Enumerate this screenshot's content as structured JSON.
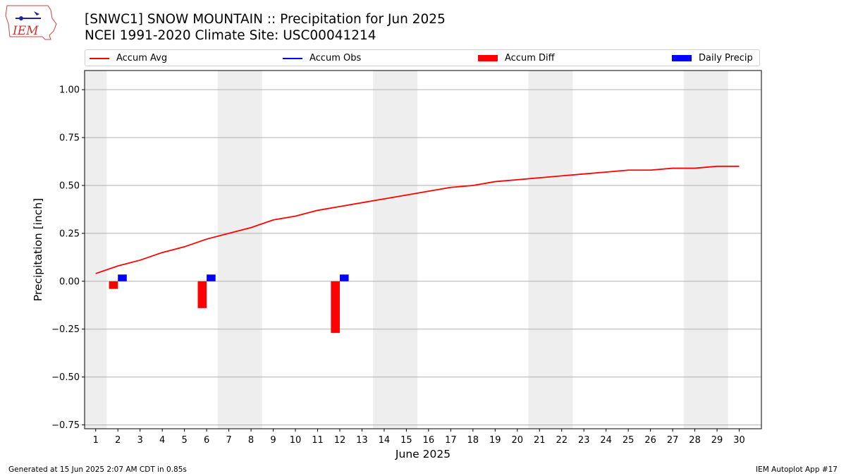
{
  "header": {
    "title_line1": "[SNWC1] SNOW MOUNTAIN :: Precipitation for Jun 2025",
    "title_line2": "NCEI 1991-2020 Climate Site: USC00041214"
  },
  "logo": {
    "text": "IEM"
  },
  "legend": {
    "items": [
      {
        "label": "Accum Avg",
        "color": "#ff0000",
        "kind": "line"
      },
      {
        "label": "Accum Obs",
        "color": "#0000ff",
        "kind": "line"
      },
      {
        "label": "Accum Diff",
        "color": "#ff0000",
        "kind": "box"
      },
      {
        "label": "Daily Precip",
        "color": "#0000ff",
        "kind": "box"
      }
    ]
  },
  "footer": {
    "left": "Generated at 15 Jun 2025 2:07 AM CDT in 0.85s",
    "right": "IEM Autoplot App #17"
  },
  "chart_data": {
    "type": "bar",
    "title": "[SNWC1] SNOW MOUNTAIN :: Precipitation for Jun 2025",
    "subtitle": "NCEI 1991-2020 Climate Site: USC00041214",
    "xlabel": "June 2025",
    "ylabel": "Precipitation [inch]",
    "xlim": [
      0.5,
      31
    ],
    "ylim": [
      -0.77,
      1.1
    ],
    "yticks": [
      -0.75,
      -0.5,
      -0.25,
      0.0,
      0.25,
      0.5,
      0.75,
      1.0
    ],
    "ytick_labels": [
      "−0.75",
      "−0.50",
      "−0.25",
      "0.00",
      "0.25",
      "0.50",
      "0.75",
      "1.00"
    ],
    "days": [
      1,
      2,
      3,
      4,
      5,
      6,
      7,
      8,
      9,
      10,
      11,
      12,
      13,
      14,
      15,
      16,
      17,
      18,
      19,
      20,
      21,
      22,
      23,
      24,
      25,
      26,
      27,
      28,
      29,
      30
    ],
    "weekend_days": [
      1,
      7,
      8,
      14,
      15,
      21,
      22,
      28,
      29
    ],
    "grid": true,
    "legend_position": "top",
    "series": [
      {
        "name": "Accum Avg",
        "kind": "line",
        "color": "#ff0000",
        "x": [
          1,
          2,
          3,
          4,
          5,
          6,
          7,
          8,
          9,
          10,
          11,
          12,
          13,
          14,
          15,
          16,
          17,
          18,
          19,
          20,
          21,
          22,
          23,
          24,
          25,
          26,
          27,
          28,
          29,
          30
        ],
        "values": [
          0.04,
          0.08,
          0.11,
          0.15,
          0.18,
          0.22,
          0.25,
          0.28,
          0.32,
          0.34,
          0.37,
          0.39,
          0.41,
          0.43,
          0.45,
          0.47,
          0.49,
          0.5,
          0.52,
          0.53,
          0.54,
          0.55,
          0.56,
          0.57,
          0.58,
          0.58,
          0.59,
          0.59,
          0.6,
          0.6
        ]
      },
      {
        "name": "Accum Obs",
        "kind": "line",
        "color": "#0000ff",
        "x": [],
        "values": []
      },
      {
        "name": "Accum Diff",
        "kind": "bar",
        "color": "#ff0000",
        "x": [
          2,
          6,
          12
        ],
        "values": [
          -0.04,
          -0.14,
          -0.27
        ]
      },
      {
        "name": "Daily Precip",
        "kind": "bar",
        "color": "#0000ff",
        "x": [
          2,
          6,
          12
        ],
        "values": [
          0.035,
          0.035,
          0.035
        ]
      }
    ]
  }
}
